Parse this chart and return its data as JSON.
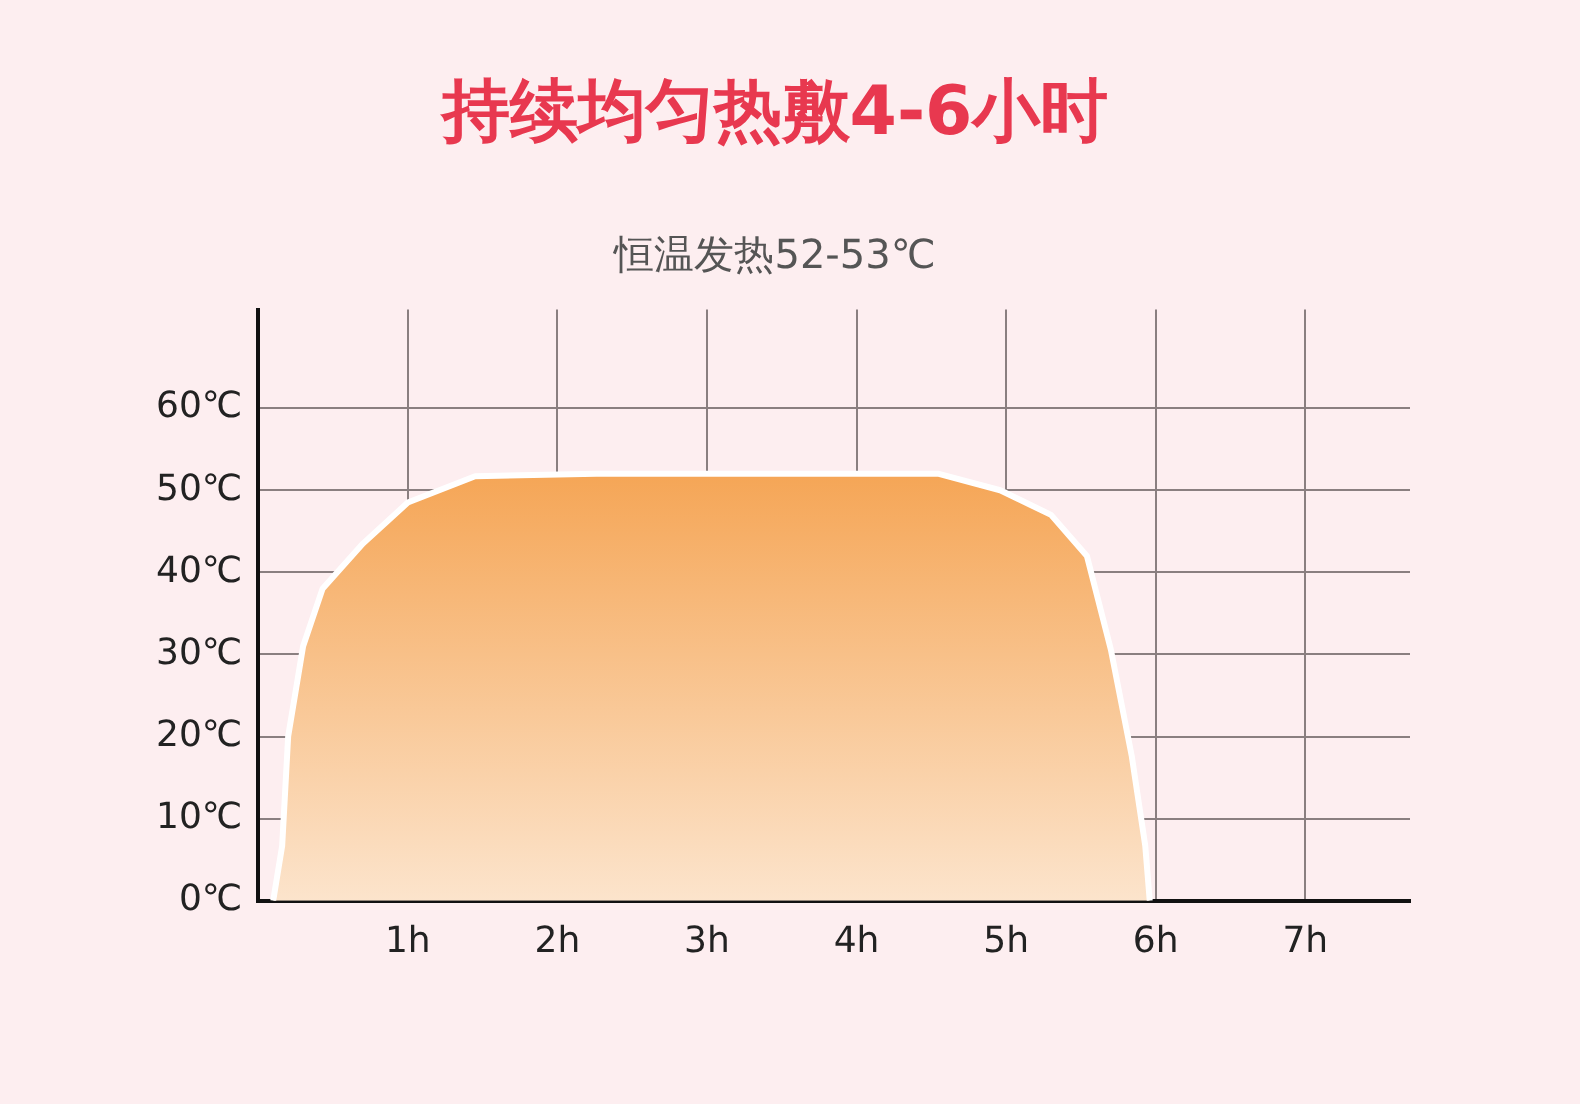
{
  "chart_data": {
    "type": "area",
    "title": "持续均匀热敷4-6小时",
    "subtitle": "恒温发热52-53℃",
    "x": [
      0.1,
      0.16,
      0.2,
      0.3,
      0.43,
      0.7,
      1.0,
      1.45,
      2.26,
      4.55,
      4.96,
      5.3,
      5.54,
      5.7,
      5.84,
      5.93,
      5.96
    ],
    "series": [
      {
        "color": "#f5a555",
        "values": [
          0,
          6.7,
          20,
          31,
          38,
          43.5,
          48.5,
          51.7,
          52,
          52,
          50,
          47,
          42,
          30.6,
          17.6,
          6.7,
          0
        ]
      }
    ],
    "xlim": [
      0,
      7.7
    ],
    "xticks": [
      {
        "value": 1,
        "label": "1h"
      },
      {
        "value": 2,
        "label": "2h"
      },
      {
        "value": 3,
        "label": "3h"
      },
      {
        "value": 4,
        "label": "4h"
      },
      {
        "value": 5,
        "label": "5h"
      },
      {
        "value": 6,
        "label": "6h"
      },
      {
        "value": 7,
        "label": "7h"
      }
    ],
    "ylim": [
      0,
      72
    ],
    "yticks": [
      {
        "value": 0,
        "label": "0℃"
      },
      {
        "value": 10,
        "label": "10℃"
      },
      {
        "value": 20,
        "label": "20℃"
      },
      {
        "value": 30,
        "label": "30℃"
      },
      {
        "value": 40,
        "label": "40℃"
      },
      {
        "value": 50,
        "label": "50℃"
      },
      {
        "value": 60,
        "label": "60℃"
      }
    ],
    "grid": true,
    "legend": false,
    "marker": "none",
    "line_style": "solid"
  }
}
